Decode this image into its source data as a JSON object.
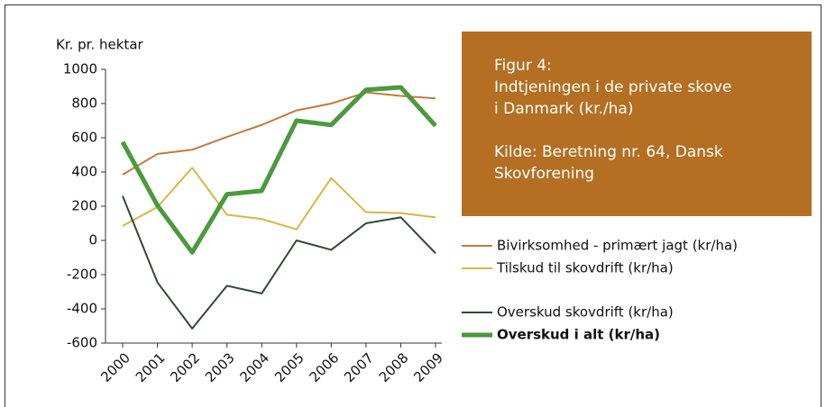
{
  "chart_data": {
    "type": "line",
    "y_label": "Kr. pr. hektar",
    "annotations": [
      {
        "lines": [
          "Figur 4:",
          "Indtjeningen i de private skove",
          "i Danmark (kr./ha)"
        ]
      },
      {
        "lines": [
          "Kilde: Beretning nr. 64, Dansk",
          "Skovforening"
        ]
      }
    ],
    "annotation_color": "#b46f22",
    "categories": [
      "2000",
      "2001",
      "2002",
      "2003",
      "2004",
      "2005",
      "2006",
      "2007",
      "2008",
      "2009"
    ],
    "series": [
      {
        "name": "Bivirksomhed - primært jagt (kr/ha)",
        "color": "#c27a3c",
        "values": [
          385,
          505,
          530,
          605,
          675,
          760,
          800,
          865,
          845,
          830
        ]
      },
      {
        "name": "Tilskud til skovdrift (kr/ha)",
        "color": "#d6b83e",
        "values": [
          85,
          195,
          425,
          150,
          125,
          65,
          365,
          165,
          160,
          135
        ]
      },
      {
        "name": "Overskud skovdrift (kr/ha)",
        "color": "#2f4a33",
        "values": [
          260,
          -245,
          -515,
          -265,
          -310,
          0,
          -55,
          100,
          135,
          -75
        ]
      },
      {
        "name": "Overskud i alt (kr/ha)",
        "color": "#4b9a3c",
        "values": [
          575,
          205,
          -70,
          270,
          290,
          700,
          675,
          880,
          895,
          670
        ]
      }
    ],
    "ylim": [
      -600,
      1000
    ],
    "yticks": [
      -600,
      -400,
      -200,
      0,
      200,
      400,
      600,
      800,
      1000
    ],
    "grid": false
  }
}
